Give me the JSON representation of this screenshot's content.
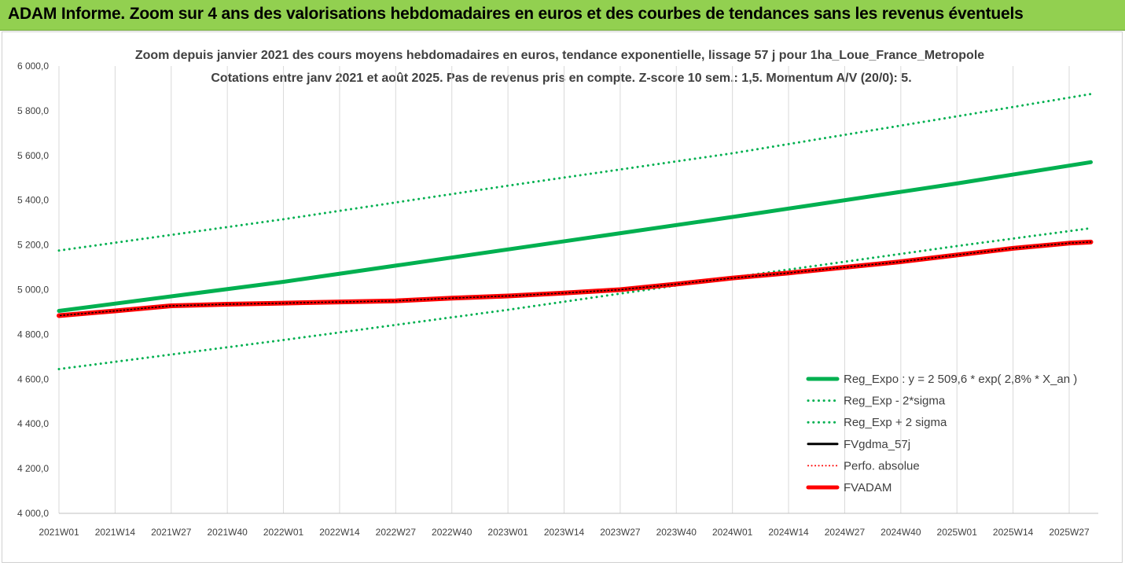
{
  "banner": {
    "title": "ADAM Informe. Zoom sur 4 ans des valorisations hebdomadaires en euros et des courbes de tendances sans les revenus éventuels"
  },
  "colors": {
    "banner_bg": "#92d050",
    "trend_green": "#00b050",
    "adam_red": "#ff0000",
    "fvgdma_black": "#000000",
    "grid": "#d9d9d9"
  },
  "chart_data": {
    "type": "line",
    "title_lines": [
      "Zoom depuis janvier 2021 des cours moyens hebdomadaires en euros, tendance exponentielle, lissage 57 j pour 1ha_Loue_France_Metropole",
      "Cotations entre janv 2021 et août 2025.  Pas de revenus pris en compte. Z-score 10 sem.: 1,5. Momentum A/V (20/0): 5."
    ],
    "x_tick_labels": [
      "2021W01",
      "2021W14",
      "2021W27",
      "2021W40",
      "2022W01",
      "2022W14",
      "2022W27",
      "2022W40",
      "2023W01",
      "2023W14",
      "2023W27",
      "2023W40",
      "2024W01",
      "2024W14",
      "2024W27",
      "2024W40",
      "2025W01",
      "2025W14",
      "2025W27"
    ],
    "y_tick_labels": [
      "4 000,0",
      "4 200,0",
      "4 400,0",
      "4 600,0",
      "4 800,0",
      "5 000,0",
      "5 200,0",
      "5 400,0",
      "5 600,0",
      "5 800,0",
      "6 000,0"
    ],
    "ylim": [
      4000,
      6000
    ],
    "grid": "vertical",
    "legend_position": "bottom-right",
    "series": [
      {
        "name": "Reg_Expo : y = 2 509,6 * exp( 2,8% *  X_an )",
        "color": "#00b050",
        "style": "solid",
        "width": 5,
        "points": [
          [
            "2021W01",
            4905
          ],
          [
            "2022W01",
            5035
          ],
          [
            "2023W01",
            5180
          ],
          [
            "2024W01",
            5325
          ],
          [
            "2025W01",
            5475
          ],
          [
            "2025W32",
            5570
          ]
        ]
      },
      {
        "name": "Reg_Exp - 2*sigma",
        "color": "#00b050",
        "style": "dotted",
        "width": 3,
        "points": [
          [
            "2021W01",
            4645
          ],
          [
            "2022W01",
            4775
          ],
          [
            "2023W01",
            4910
          ],
          [
            "2024W01",
            5055
          ],
          [
            "2025W01",
            5195
          ],
          [
            "2025W32",
            5275
          ]
        ]
      },
      {
        "name": "Reg_Exp + 2 sigma",
        "color": "#00b050",
        "style": "dotted",
        "width": 3,
        "points": [
          [
            "2021W01",
            5175
          ],
          [
            "2022W01",
            5315
          ],
          [
            "2023W01",
            5465
          ],
          [
            "2024W01",
            5610
          ],
          [
            "2025W01",
            5775
          ],
          [
            "2025W32",
            5875
          ]
        ]
      },
      {
        "name": "FVgdma_57j",
        "color": "#000000",
        "style": "solid",
        "width": 3,
        "points": [
          [
            "2021W01",
            4884
          ],
          [
            "2021W14",
            4905
          ],
          [
            "2021W27",
            4928
          ],
          [
            "2021W40",
            4935
          ],
          [
            "2022W01",
            4940
          ],
          [
            "2022W14",
            4945
          ],
          [
            "2022W27",
            4950
          ],
          [
            "2022W40",
            4962
          ],
          [
            "2023W01",
            4972
          ],
          [
            "2023W14",
            4985
          ],
          [
            "2023W27",
            5000
          ],
          [
            "2023W40",
            5025
          ],
          [
            "2024W01",
            5052
          ],
          [
            "2024W14",
            5075
          ],
          [
            "2024W27",
            5100
          ],
          [
            "2024W40",
            5125
          ],
          [
            "2025W01",
            5155
          ],
          [
            "2025W14",
            5185
          ],
          [
            "2025W27",
            5208
          ],
          [
            "2025W32",
            5213
          ]
        ]
      },
      {
        "name": "Perfo. absolue",
        "color": "#ff0000",
        "style": "dotted",
        "width": 2,
        "points": [
          [
            "2021W01",
            4884
          ],
          [
            "2021W14",
            4905
          ],
          [
            "2021W27",
            4928
          ],
          [
            "2021W40",
            4935
          ],
          [
            "2022W01",
            4940
          ],
          [
            "2022W14",
            4945
          ],
          [
            "2022W27",
            4950
          ],
          [
            "2022W40",
            4962
          ],
          [
            "2023W01",
            4972
          ],
          [
            "2023W14",
            4985
          ],
          [
            "2023W27",
            5000
          ],
          [
            "2023W40",
            5025
          ],
          [
            "2024W01",
            5052
          ],
          [
            "2024W14",
            5075
          ],
          [
            "2024W27",
            5100
          ],
          [
            "2024W40",
            5125
          ],
          [
            "2025W01",
            5155
          ],
          [
            "2025W14",
            5185
          ],
          [
            "2025W27",
            5208
          ],
          [
            "2025W32",
            5213
          ]
        ]
      },
      {
        "name": "FVADAM",
        "color": "#ff0000",
        "style": "solid",
        "width": 6,
        "points": [
          [
            "2021W01",
            4884
          ],
          [
            "2021W14",
            4905
          ],
          [
            "2021W27",
            4928
          ],
          [
            "2021W40",
            4935
          ],
          [
            "2022W01",
            4940
          ],
          [
            "2022W14",
            4945
          ],
          [
            "2022W27",
            4950
          ],
          [
            "2022W40",
            4962
          ],
          [
            "2023W01",
            4972
          ],
          [
            "2023W14",
            4985
          ],
          [
            "2023W27",
            5000
          ],
          [
            "2023W40",
            5025
          ],
          [
            "2024W01",
            5052
          ],
          [
            "2024W14",
            5075
          ],
          [
            "2024W27",
            5100
          ],
          [
            "2024W40",
            5125
          ],
          [
            "2025W01",
            5155
          ],
          [
            "2025W14",
            5185
          ],
          [
            "2025W27",
            5208
          ],
          [
            "2025W32",
            5213
          ]
        ]
      }
    ]
  }
}
